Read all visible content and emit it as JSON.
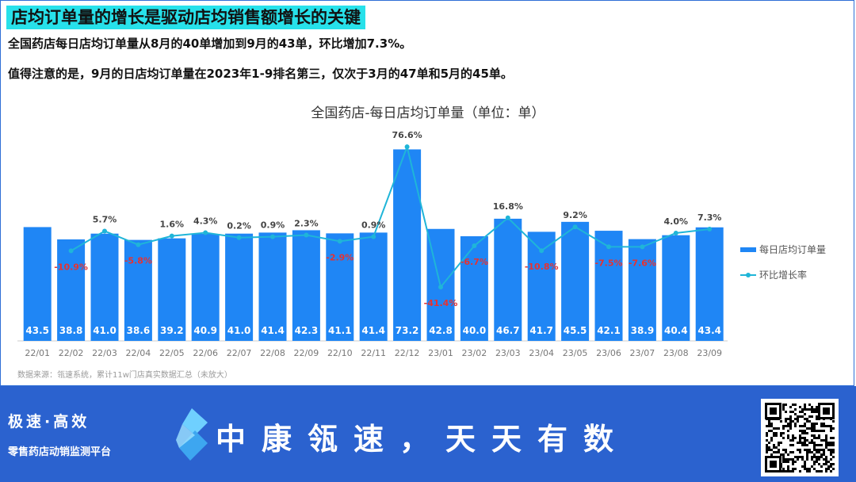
{
  "header": {
    "headline": "店均订单量的增长是驱动店均销售额增长的关键",
    "line1": "全国药店每日店均订单量从8月的40单增加到9月的43单，环比增加7.3%。",
    "line2": "值得注意的是，9月的日店均订单量在2023年1-9排名第三，仅次于3月的47单和5月的45单。"
  },
  "chart_data": {
    "type": "bar",
    "title": "全国药店-每日店均订单量（单位：单）",
    "categories": [
      "22/01",
      "22/02",
      "22/03",
      "22/04",
      "22/05",
      "22/06",
      "22/07",
      "22/08",
      "22/09",
      "22/10",
      "22/11",
      "22/12",
      "23/01",
      "23/02",
      "23/03",
      "23/04",
      "23/05",
      "23/06",
      "23/07",
      "23/08",
      "23/09"
    ],
    "series": [
      {
        "name": "每日店均订单量",
        "type": "bar",
        "values": [
          43.5,
          38.8,
          41.0,
          38.6,
          39.2,
          40.9,
          41.0,
          41.4,
          42.3,
          41.1,
          41.4,
          73.2,
          42.8,
          40.0,
          46.7,
          41.7,
          45.5,
          42.1,
          38.9,
          40.4,
          43.4
        ]
      },
      {
        "name": "环比增长率",
        "type": "line",
        "values": [
          null,
          -10.9,
          5.7,
          -5.8,
          1.6,
          4.3,
          0.2,
          0.9,
          2.3,
          -2.9,
          0.9,
          76.6,
          -41.4,
          -6.7,
          16.8,
          -10.8,
          9.2,
          -7.5,
          -7.6,
          4.0,
          7.3
        ],
        "labels": [
          "",
          "-10.9%",
          "5.7%",
          "-5.8%",
          "1.6%",
          "4.3%",
          "0.2%",
          "0.9%",
          "2.3%",
          "-2.9%",
          "0.9%",
          "76.6%",
          "-41.4%",
          "-6.7%",
          "16.8%",
          "-10.8%",
          "9.2%",
          "-7.5%",
          "-7.6%",
          "4.0%",
          "7.3%"
        ]
      }
    ],
    "legend_position": "right",
    "grid": false,
    "colors": {
      "bar": "#1f86f5",
      "line": "#1fb5d8",
      "negative_label": "#e53232",
      "positive_label": "#444444"
    }
  },
  "source_note": "数据来源：瓴速系统，累计11w门店真实数据汇总（未放大）",
  "banner": {
    "slogan1": "极速·高效",
    "slogan2": "零售药店动销监测平台",
    "brand": "中康瓴速，天天有数",
    "logo_icon": "brand-logo-icon",
    "qr_icon": "qr-code-icon"
  }
}
